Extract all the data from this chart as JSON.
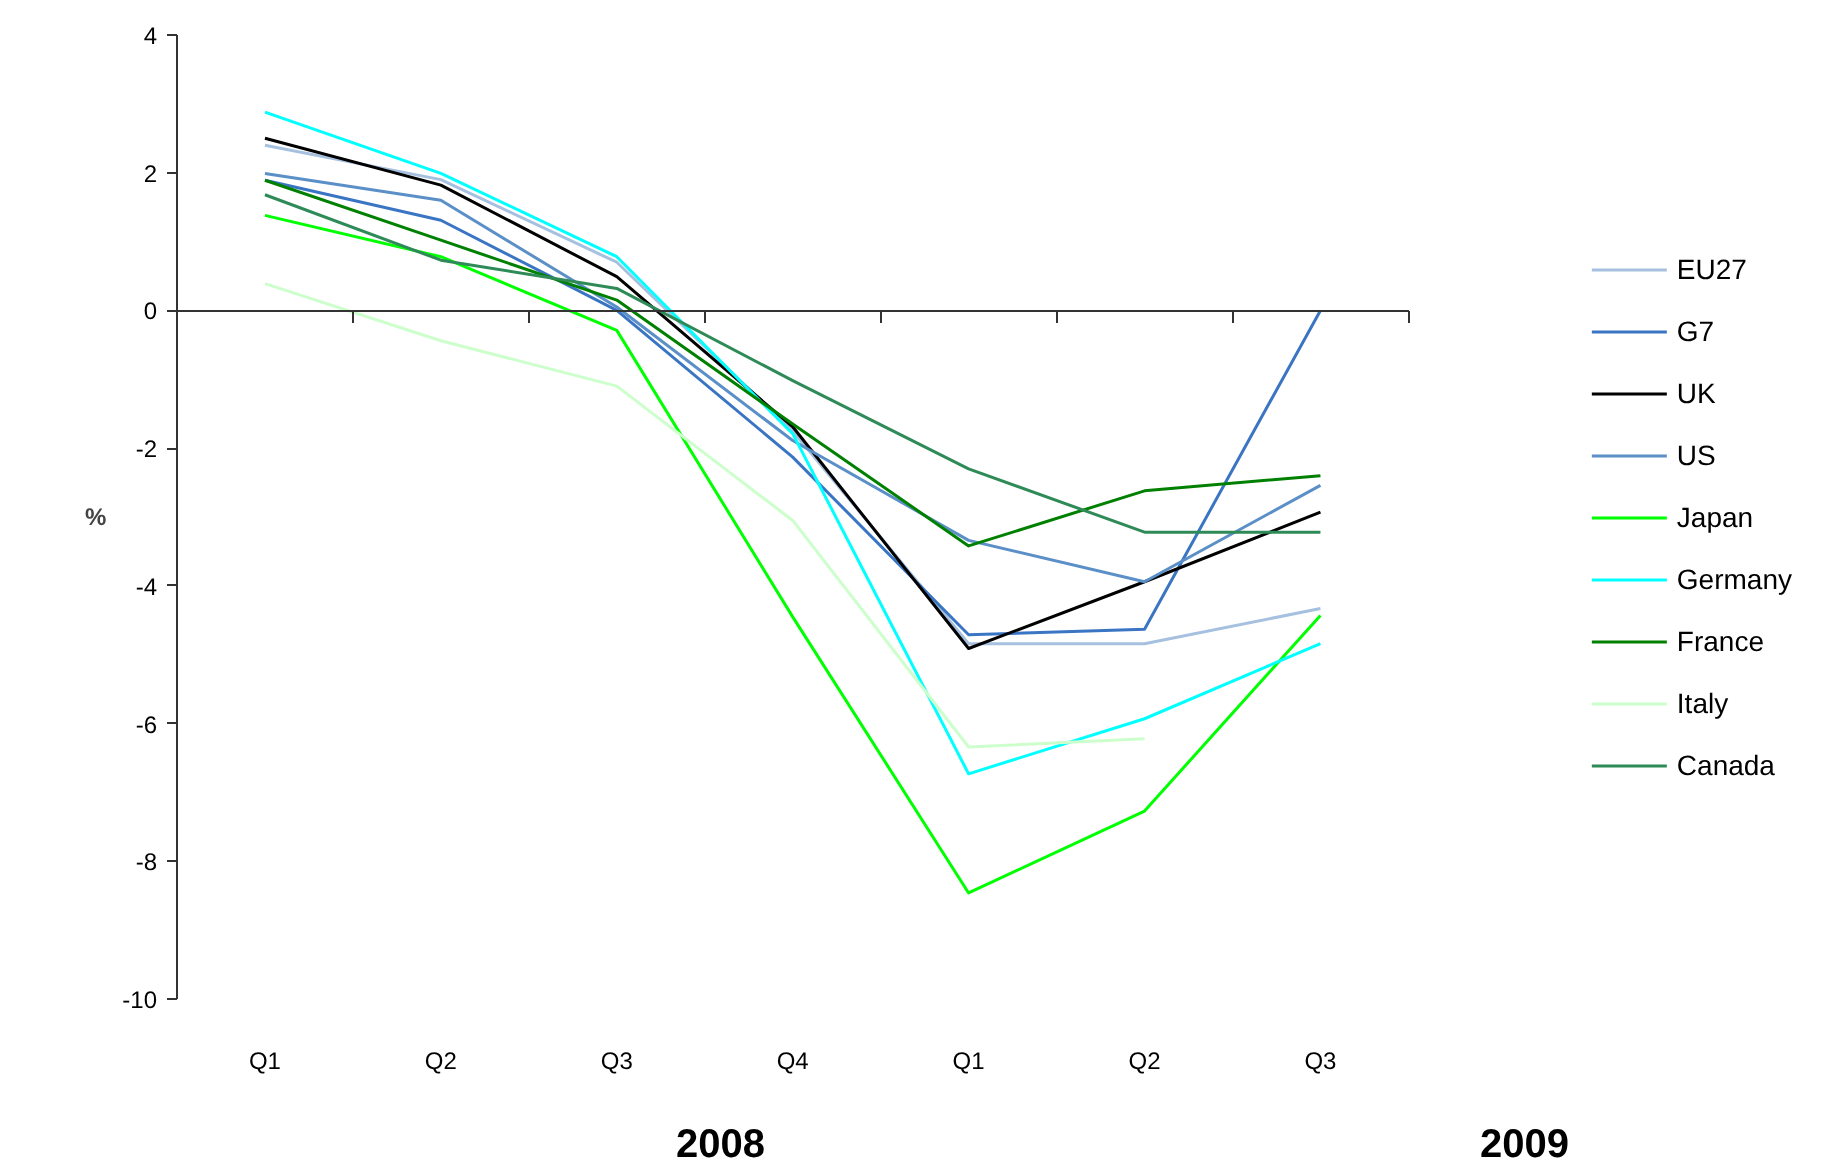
{
  "chart_data": {
    "type": "line",
    "categories": [
      "Q1",
      "Q2",
      "Q3",
      "Q4",
      "Q1",
      "Q2",
      "Q3"
    ],
    "series": [
      {
        "name": "EU27",
        "color": "#a6c0e0",
        "values": [
          2.4,
          1.9,
          0.7,
          -1.75,
          -4.84,
          -4.84,
          -4.33
        ]
      },
      {
        "name": "G7",
        "color": "#3a75c4",
        "values": [
          1.89,
          1.31,
          0.0,
          -2.13,
          -4.71,
          -4.63,
          0.0
        ]
      },
      {
        "name": "UK",
        "color": "#000000",
        "values": [
          2.5,
          1.82,
          0.49,
          -1.69,
          -4.91,
          -3.94,
          -2.93
        ]
      },
      {
        "name": "US",
        "color": "#5b8fc7",
        "values": [
          1.99,
          1.6,
          0.05,
          -1.89,
          -3.34,
          -3.94,
          -2.54
        ]
      },
      {
        "name": "Japan",
        "color": "#00ff00",
        "values": [
          1.38,
          0.78,
          -0.29,
          -4.45,
          -8.46,
          -7.27,
          -4.43
        ]
      },
      {
        "name": "Germany",
        "color": "#00ffff",
        "values": [
          2.88,
          1.99,
          0.78,
          -1.79,
          -6.73,
          -5.93,
          -4.84
        ]
      },
      {
        "name": "France",
        "color": "#008000",
        "values": [
          1.89,
          1.02,
          0.15,
          -1.65,
          -3.42,
          -2.62,
          -2.4
        ]
      },
      {
        "name": "Italy",
        "color": "#ccffcc",
        "values": [
          0.39,
          -0.44,
          -1.1,
          -3.05,
          -6.34,
          -6.22,
          null
        ]
      },
      {
        "name": "Canada",
        "color": "#2e8b57",
        "values": [
          1.68,
          0.73,
          0.32,
          -1.02,
          -2.3,
          -3.22,
          -3.22
        ]
      }
    ],
    "ylabel": "%",
    "ylim": [
      -10,
      4
    ],
    "yticks": [
      -10,
      -8,
      -6,
      -4,
      -2,
      0,
      2,
      4
    ],
    "annotations": [
      "2008",
      "2009"
    ],
    "legend": "right",
    "marker": "none",
    "line_style": "solid"
  }
}
